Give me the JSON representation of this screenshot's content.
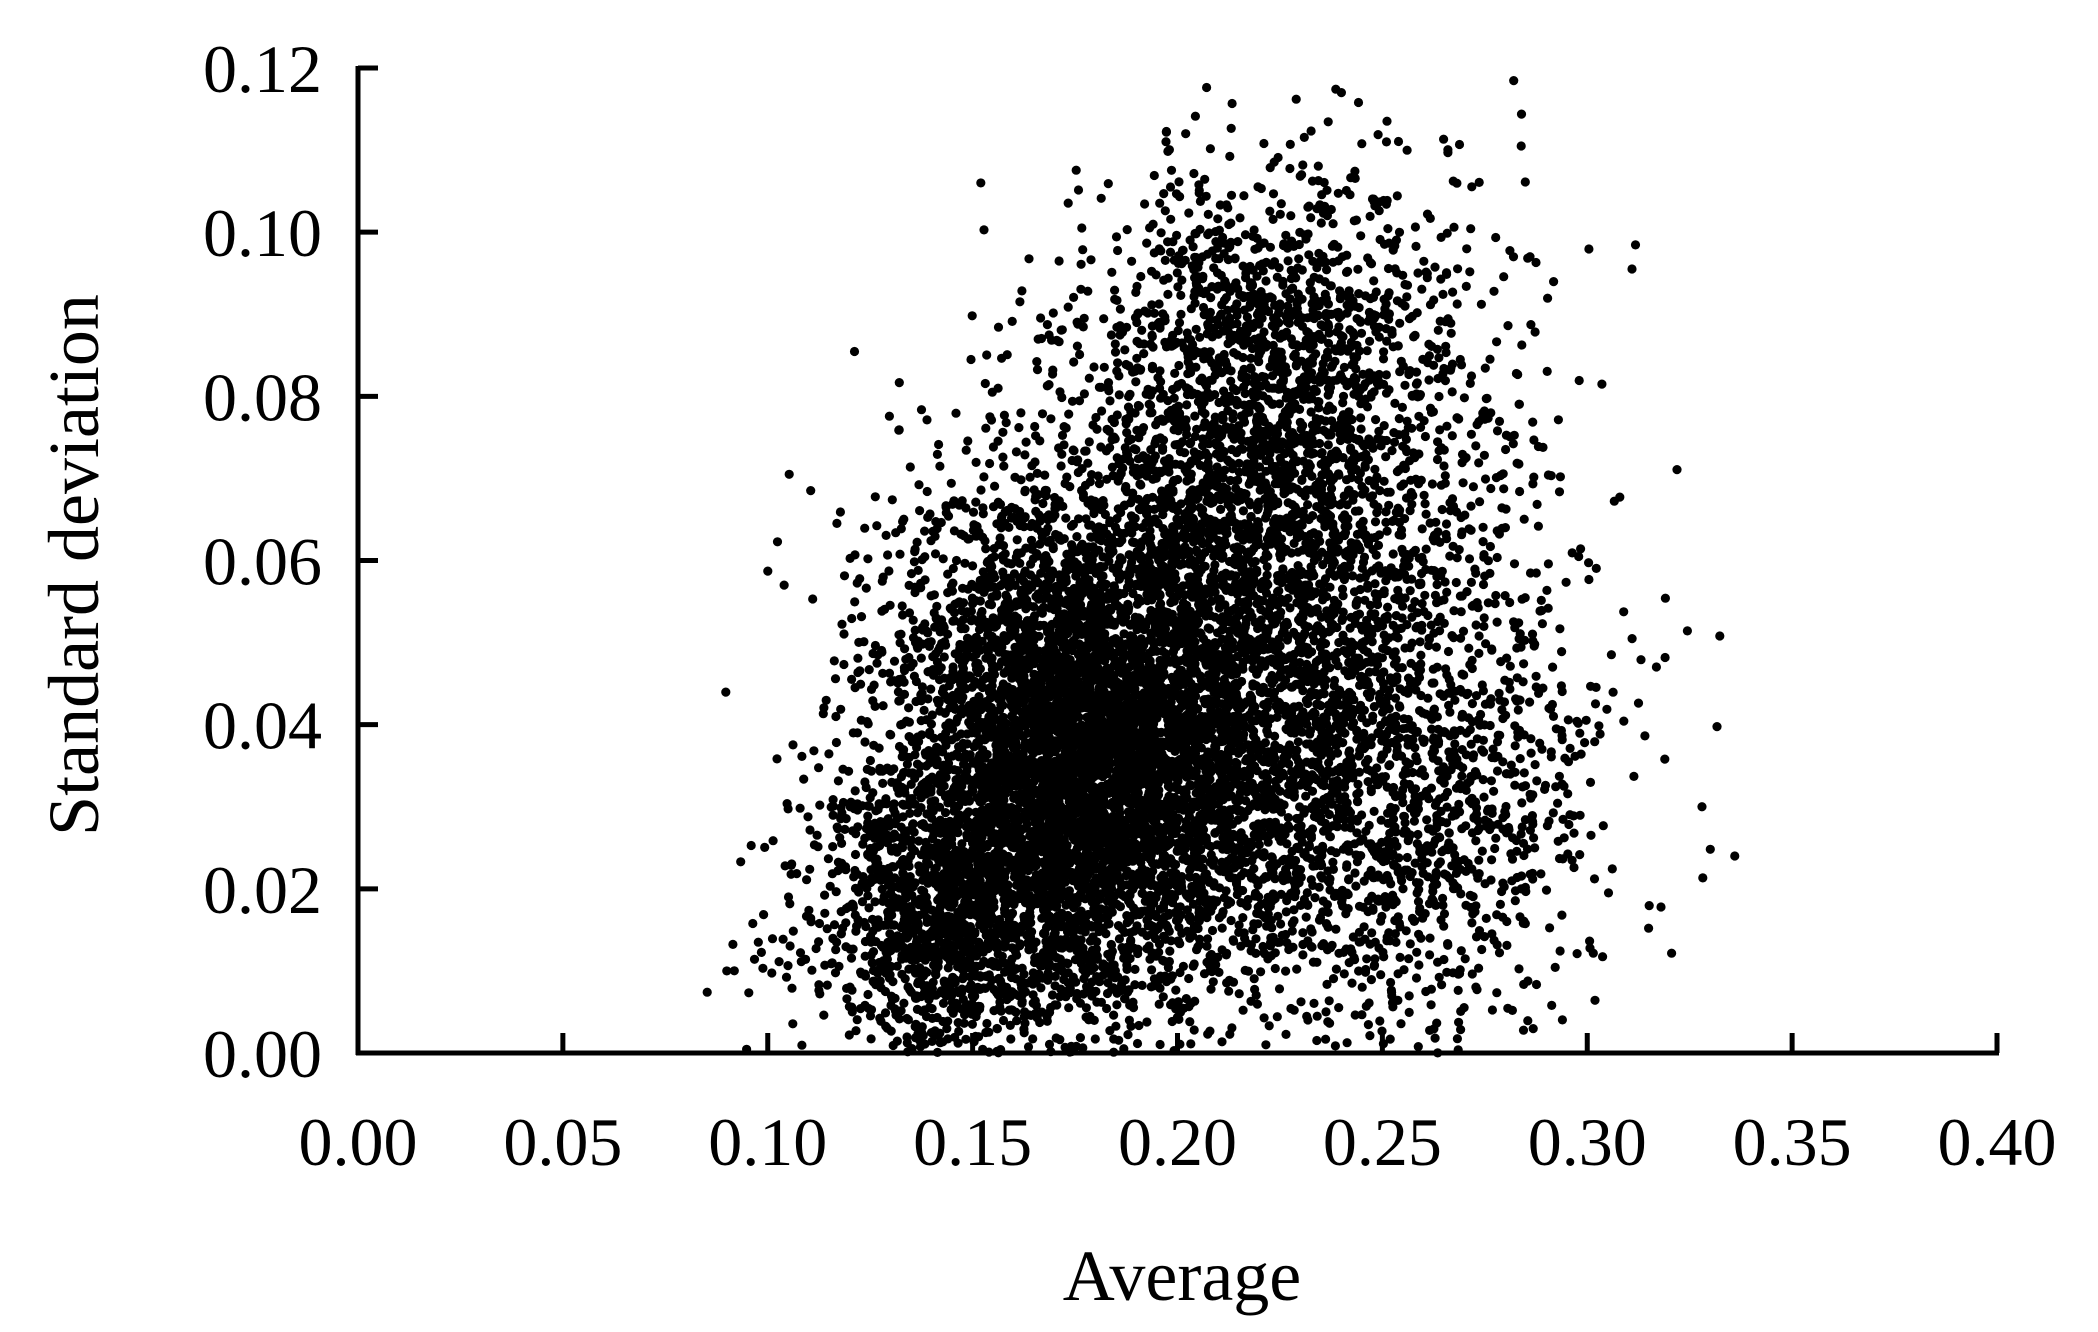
{
  "chart_data": {
    "type": "scatter",
    "title": "",
    "xlabel": "Average",
    "ylabel": "Standard deviation",
    "xlim": [
      0.0,
      0.4
    ],
    "ylim": [
      0.0,
      0.12
    ],
    "x_ticks": [
      "0.00",
      "0.05",
      "0.10",
      "0.15",
      "0.20",
      "0.25",
      "0.30",
      "0.35",
      "0.40"
    ],
    "y_ticks": [
      "0.00",
      "0.02",
      "0.04",
      "0.06",
      "0.08",
      "0.10",
      "0.12"
    ],
    "grid": false,
    "legend": "none",
    "marker_color": "#000000",
    "point_count_estimate": 12000,
    "clusters": [
      {
        "center_x": 0.17,
        "center_y": 0.04,
        "sd_x": 0.022,
        "sd_y": 0.016,
        "points": 3200
      },
      {
        "center_x": 0.19,
        "center_y": 0.033,
        "sd_x": 0.02,
        "sd_y": 0.013,
        "points": 2200
      },
      {
        "center_x": 0.145,
        "center_y": 0.017,
        "sd_x": 0.018,
        "sd_y": 0.01,
        "points": 1500
      },
      {
        "center_x": 0.215,
        "center_y": 0.065,
        "sd_x": 0.022,
        "sd_y": 0.018,
        "points": 2200
      },
      {
        "center_x": 0.25,
        "center_y": 0.035,
        "sd_x": 0.026,
        "sd_y": 0.018,
        "points": 1900
      },
      {
        "center_x": 0.235,
        "center_y": 0.085,
        "sd_x": 0.025,
        "sd_y": 0.012,
        "points": 800
      }
    ],
    "notable_points": [
      {
        "x": 0.24,
        "y": 0.117
      },
      {
        "x": 0.202,
        "y": 0.112
      },
      {
        "x": 0.251,
        "y": 0.111
      },
      {
        "x": 0.152,
        "y": 0.106
      },
      {
        "x": 0.104,
        "y": 0.057
      },
      {
        "x": 0.09,
        "y": 0.01
      },
      {
        "x": 0.336,
        "y": 0.024
      },
      {
        "x": 0.328,
        "y": 0.03
      },
      {
        "x": 0.282,
        "y": 0.097
      }
    ]
  }
}
